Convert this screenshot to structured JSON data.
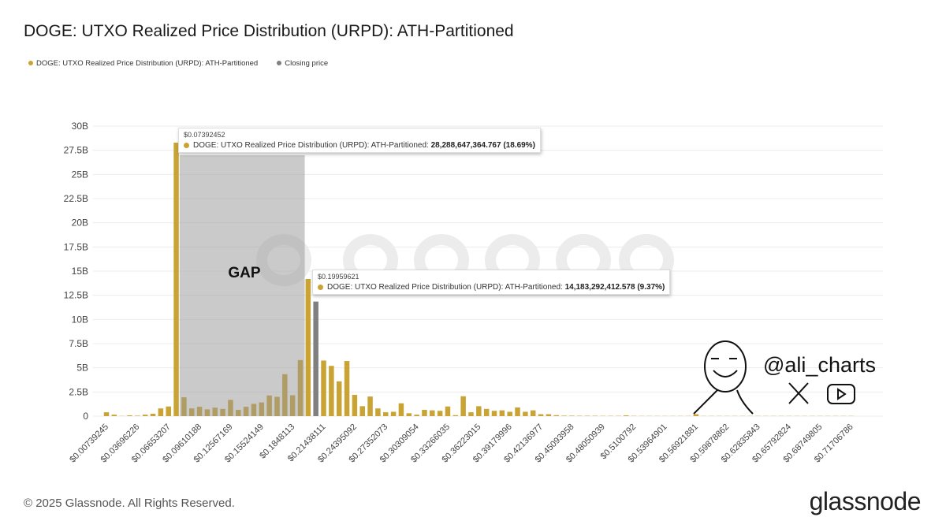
{
  "title": "DOGE: UTXO Realized Price Distribution (URPD): ATH-Partitioned",
  "footer": "© 2025 Glassnode. All Rights Reserved.",
  "logo": "glassnode",
  "watermark": "glassnode",
  "brand_handle": "@ali_charts",
  "colors": {
    "urpd": "#c9a435",
    "closing": "#808080",
    "gap": "#bdbdbd"
  },
  "chart_data": {
    "type": "bar",
    "title": "DOGE: UTXO Realized Price Distribution (URPD): ATH-Partitioned",
    "xlabel": "",
    "ylabel": "",
    "ylim": [
      0,
      30000000000
    ],
    "y_ticks": [
      "0",
      "2.5B",
      "5B",
      "7.5B",
      "10B",
      "12.5B",
      "15B",
      "17.5B",
      "20B",
      "22.5B",
      "25B",
      "27.5B",
      "30B"
    ],
    "x_tick_labels": [
      "$0.00739245",
      "$0.03696226",
      "$0.06653207",
      "$0.09610188",
      "$0.12567169",
      "$0.15524149",
      "$0.1848113",
      "$0.21438111",
      "$0.24395092",
      "$0.27352073",
      "$0.30309054",
      "$0.33266035",
      "$0.36223015",
      "$0.39179996",
      "$0.42136977",
      "$0.45093958",
      "$0.48050939",
      "$0.5100792",
      "$0.53964901",
      "$0.56921881",
      "$0.59878862",
      "$0.62835843",
      "$0.65792824",
      "$0.68749805",
      "$0.71706786"
    ],
    "bucket_size": 0.00739245,
    "legend": [
      {
        "name": "DOGE: UTXO Realized Price Distribution (URPD): ATH-Partitioned",
        "color": "#c9a435"
      },
      {
        "name": "Closing price",
        "color": "#808080"
      }
    ],
    "legend_placement": "top-left",
    "series": [
      {
        "name": "DOGE: UTXO Realized Price Distribution (URPD): ATH-Partitioned",
        "unit": "B",
        "values": [
          0.4,
          0.15,
          0.02,
          0.08,
          0.05,
          0.15,
          0.25,
          0.8,
          1.0,
          28.2886,
          1.95,
          0.8,
          0.97,
          0.7,
          0.88,
          0.75,
          1.68,
          0.65,
          0.97,
          1.27,
          1.42,
          2.14,
          2.0,
          4.34,
          2.16,
          5.8,
          14.1833,
          0,
          5.75,
          5.2,
          3.6,
          5.7,
          2.2,
          1.03,
          2.03,
          0.8,
          0.4,
          0.45,
          1.33,
          0.3,
          0.15,
          0.65,
          0.6,
          0.55,
          1.0,
          0.1,
          2.06,
          0.4,
          1.03,
          0.75,
          0.55,
          0.6,
          0.45,
          0.9,
          0.45,
          0.6,
          0.2,
          0.2,
          0.1,
          0.05,
          0.05,
          0.04,
          0.04,
          0.04,
          0.03,
          0.03,
          0.03,
          0.08,
          0.03,
          0.02,
          0.02,
          0.02,
          0.02,
          0.02,
          0.02,
          0.02,
          0.2,
          0.02,
          0.02,
          0.02,
          0.02,
          0.02,
          0.02,
          0.02,
          0.02,
          0.02,
          0.02,
          0.02,
          0.02,
          0.02,
          0.02,
          0.02,
          0.02,
          0.02,
          0.02,
          0.02,
          0.02
        ]
      },
      {
        "name": "Closing price",
        "unit": "B",
        "index": 27,
        "value": 11.85
      }
    ],
    "annotations": {
      "gap_label": "GAP",
      "tooltips": [
        {
          "price": "$0.07392452",
          "series": "DOGE: UTXO Realized Price Distribution (URPD): ATH-Partitioned:",
          "value": "28,288,647,364.767 (18.69%)",
          "index": 9
        },
        {
          "price": "$0.19959621",
          "series": "DOGE: UTXO Realized Price Distribution (URPD): ATH-Partitioned:",
          "value": "14,183,292,412.578 (9.37%)",
          "index": 26
        }
      ]
    }
  }
}
